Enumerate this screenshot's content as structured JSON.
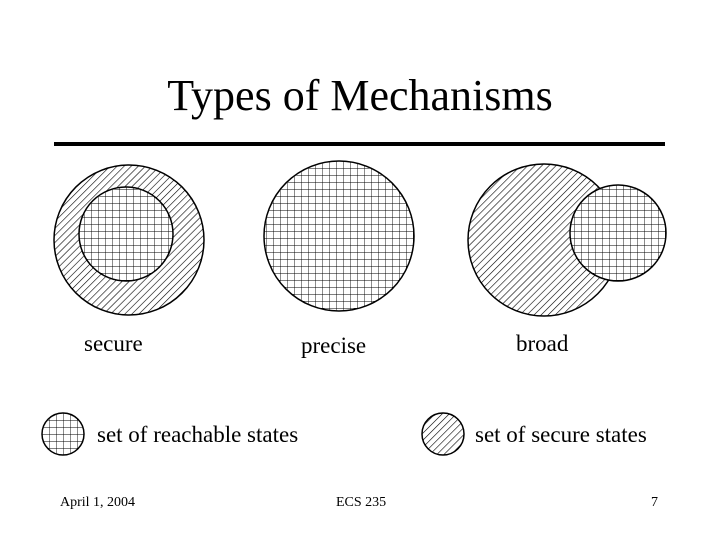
{
  "slide": {
    "title": "Types of Mechanisms"
  },
  "diagrams": {
    "secure_label": "secure",
    "precise_label": "precise",
    "broad_label": "broad"
  },
  "legend": {
    "reachable_label": "set of reachable states",
    "secure_label": "set of secure states"
  },
  "footer": {
    "date": "April 1, 2004",
    "course": "ECS 235",
    "page": "7"
  }
}
